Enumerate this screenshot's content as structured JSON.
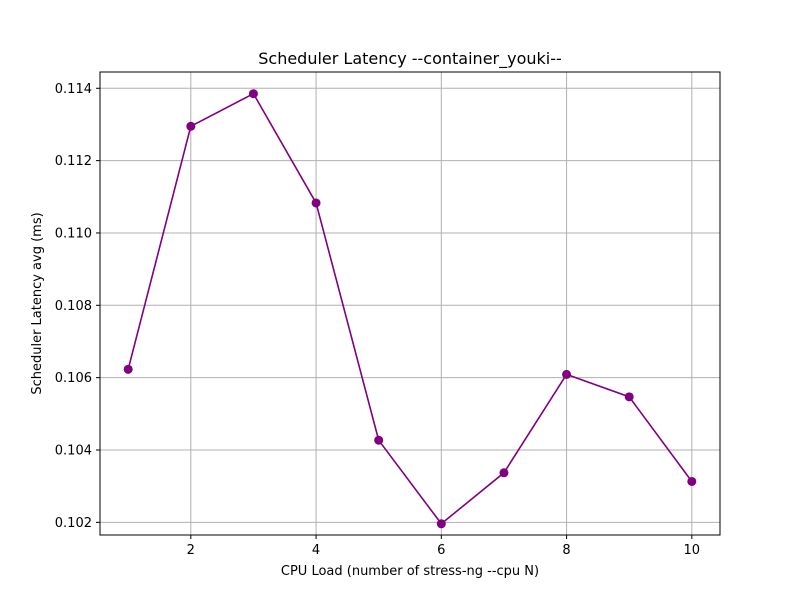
{
  "chart_data": {
    "type": "line",
    "title": "Scheduler Latency --container_youki--",
    "xlabel": "CPU Load (number of stress-ng --cpu N)",
    "ylabel": "Scheduler Latency avg (ms)",
    "x": [
      1,
      2,
      3,
      4,
      5,
      6,
      7,
      8,
      9,
      10
    ],
    "series": [
      {
        "values": [
          0.10623,
          0.11295,
          0.11385,
          0.11083,
          0.10427,
          0.10196,
          0.10337,
          0.10609,
          0.10547,
          0.10313
        ]
      }
    ],
    "xlim": [
      0.55,
      10.45
    ],
    "ylim": [
      0.10165,
      0.11445
    ],
    "xticks": [
      2,
      4,
      6,
      8,
      10
    ],
    "xtick_labels": [
      "2",
      "4",
      "6",
      "8",
      "10"
    ],
    "yticks": [
      0.102,
      0.104,
      0.106,
      0.108,
      0.11,
      0.112,
      0.114
    ],
    "ytick_labels": [
      "0.102",
      "0.104",
      "0.106",
      "0.108",
      "0.110",
      "0.112",
      "0.114"
    ],
    "grid": true,
    "line_color": "#800080",
    "marker": "circle"
  }
}
